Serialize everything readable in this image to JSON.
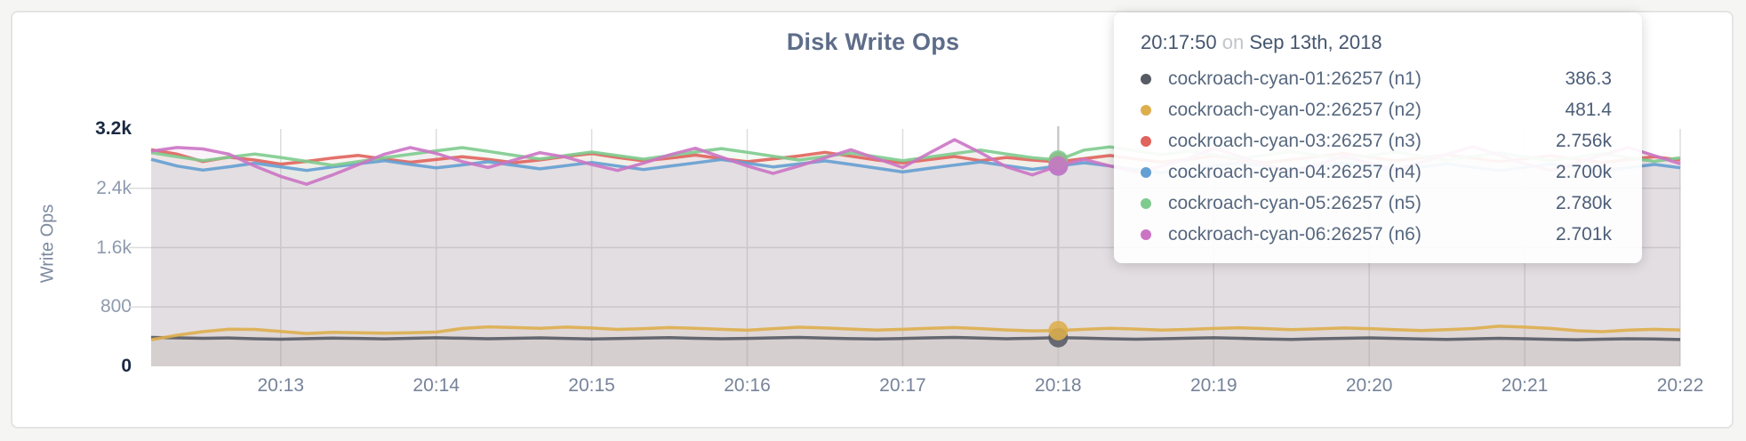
{
  "colors": {
    "page_bg": "#f5f5f3",
    "panel_border": "#e4e4e4",
    "grid": "#dddddd",
    "hover_line": "#c9c9c9",
    "title_text": "#5e6d89",
    "axis_text": "#8e9aae",
    "axis_text_emphasis": "#1b2942"
  },
  "tooltip": {
    "time": "20:17:50",
    "conjunction": "on",
    "date": "Sep 13th, 2018",
    "hover_index": 35,
    "rows": [
      {
        "label": "cockroach-cyan-01:26257 (n1)",
        "value": "386.3"
      },
      {
        "label": "cockroach-cyan-02:26257 (n2)",
        "value": "481.4"
      },
      {
        "label": "cockroach-cyan-03:26257 (n3)",
        "value": "2.756k"
      },
      {
        "label": "cockroach-cyan-04:26257 (n4)",
        "value": "2.700k"
      },
      {
        "label": "cockroach-cyan-05:26257 (n5)",
        "value": "2.780k"
      },
      {
        "label": "cockroach-cyan-06:26257 (n6)",
        "value": "2.701k"
      }
    ]
  },
  "chart_data": {
    "type": "line",
    "title": "Disk Write Ops",
    "ylabel": "Write Ops",
    "xlabel": "",
    "grid": true,
    "legend_position": "tooltip-overlay",
    "ylim": [
      0,
      3600
    ],
    "x_start_time": "20:12:00",
    "x_step_seconds": 10,
    "y_ticks": [
      {
        "label": "3.2k",
        "value": 3200,
        "emphasis": true,
        "gridline": false
      },
      {
        "label": "2.4k",
        "value": 2400,
        "emphasis": false,
        "gridline": true
      },
      {
        "label": "1.6k",
        "value": 1600,
        "emphasis": false,
        "gridline": true
      },
      {
        "label": "800",
        "value": 800,
        "emphasis": false,
        "gridline": true
      },
      {
        "label": "0",
        "value": 0,
        "emphasis": true,
        "gridline": false
      }
    ],
    "x_ticks": [
      {
        "label": "20:13",
        "index": 5
      },
      {
        "label": "20:14",
        "index": 11
      },
      {
        "label": "20:15",
        "index": 17
      },
      {
        "label": "20:16",
        "index": 23
      },
      {
        "label": "20:17",
        "index": 29
      },
      {
        "label": "20:18",
        "index": 35
      },
      {
        "label": "20:19",
        "index": 41
      },
      {
        "label": "20:20",
        "index": 47
      },
      {
        "label": "20:21",
        "index": 53
      },
      {
        "label": "20:22",
        "index": 59
      }
    ],
    "series": [
      {
        "name": "cockroach-cyan-01:26257 (n1)",
        "color": "#565b64",
        "values": [
          390,
          384,
          377,
          382,
          371,
          366,
          373,
          380,
          376,
          370,
          378,
          385,
          379,
          372,
          377,
          383,
          376,
          369,
          374,
          381,
          386,
          378,
          371,
          376,
          384,
          390,
          381,
          373,
          368,
          375,
          383,
          389,
          380,
          372,
          378,
          386.3,
          380,
          372,
          365,
          371,
          379,
          385,
          377,
          369,
          363,
          371,
          378,
          384,
          376,
          368,
          362,
          370,
          377,
          371,
          364,
          358,
          365,
          372,
          368,
          361
        ]
      },
      {
        "name": "cockroach-cyan-02:26257 (n2)",
        "color": "#ddae4c",
        "values": [
          358,
          420,
          468,
          500,
          497,
          470,
          442,
          458,
          452,
          447,
          452,
          462,
          510,
          532,
          522,
          513,
          528,
          516,
          497,
          508,
          522,
          512,
          498,
          486,
          508,
          527,
          516,
          502,
          489,
          498,
          512,
          523,
          508,
          490,
          478,
          481.4,
          498,
          512,
          502,
          488,
          497,
          510,
          520,
          508,
          494,
          505,
          517,
          508,
          494,
          483,
          495,
          509,
          541,
          528,
          510,
          480,
          468,
          488,
          498,
          490
        ]
      },
      {
        "name": "cockroach-cyan-03:26257 (n3)",
        "color": "#e0635c",
        "values": [
          2920,
          2860,
          2760,
          2820,
          2780,
          2725,
          2762,
          2808,
          2843,
          2795,
          2750,
          2788,
          2826,
          2790,
          2745,
          2782,
          2830,
          2868,
          2815,
          2770,
          2806,
          2848,
          2800,
          2758,
          2795,
          2836,
          2885,
          2832,
          2780,
          2742,
          2786,
          2828,
          2772,
          2815,
          2780,
          2756,
          2800,
          2842,
          2795,
          2752,
          2790,
          2835,
          2788,
          2745,
          2786,
          2828,
          2870,
          2818,
          2772,
          2810,
          2852,
          2806,
          2760,
          2798,
          2840,
          2792,
          2748,
          2786,
          2825,
          2780
        ]
      },
      {
        "name": "cockroach-cyan-04:26257 (n4)",
        "color": "#649fd2",
        "values": [
          2790,
          2700,
          2645,
          2690,
          2738,
          2690,
          2640,
          2688,
          2730,
          2772,
          2722,
          2675,
          2715,
          2758,
          2710,
          2662,
          2705,
          2748,
          2700,
          2652,
          2698,
          2742,
          2788,
          2738,
          2688,
          2728,
          2770,
          2722,
          2672,
          2620,
          2668,
          2712,
          2755,
          2705,
          2655,
          2700,
          2745,
          2700,
          2652,
          2608,
          2655,
          2700,
          2742,
          2695,
          2648,
          2692,
          2736,
          2690,
          2642,
          2686,
          2730,
          2684,
          2638,
          2682,
          2726,
          2680,
          2634,
          2678,
          2722,
          2676
        ]
      },
      {
        "name": "cockroach-cyan-05:26257 (n5)",
        "color": "#7ecb8e",
        "values": [
          2880,
          2825,
          2772,
          2818,
          2862,
          2815,
          2762,
          2710,
          2760,
          2812,
          2858,
          2905,
          2948,
          2898,
          2845,
          2795,
          2842,
          2888,
          2840,
          2792,
          2840,
          2888,
          2935,
          2885,
          2832,
          2780,
          2828,
          2876,
          2825,
          2772,
          2820,
          2868,
          2915,
          2862,
          2812,
          2780,
          2915,
          2958,
          2905,
          2852,
          2900,
          2852,
          2800,
          2848,
          2895,
          2845,
          2792,
          2840,
          2888,
          2836,
          2782,
          2830,
          2878,
          2825,
          2772,
          2820,
          2868,
          2815,
          2762,
          2810
        ]
      },
      {
        "name": "cockroach-cyan-06:26257 (n6)",
        "color": "#cb74c4",
        "values": [
          2900,
          2950,
          2930,
          2860,
          2700,
          2560,
          2455,
          2580,
          2720,
          2860,
          2950,
          2870,
          2760,
          2680,
          2780,
          2880,
          2820,
          2720,
          2640,
          2740,
          2850,
          2940,
          2820,
          2700,
          2600,
          2700,
          2810,
          2920,
          2800,
          2680,
          2870,
          3055,
          2880,
          2690,
          2580,
          2701,
          2790,
          2700,
          2620,
          2700,
          2800,
          2940,
          2830,
          2710,
          2620,
          2720,
          2830,
          2740,
          2650,
          2750,
          2860,
          2960,
          2850,
          2730,
          2640,
          2740,
          2850,
          2950,
          2840,
          2730
        ]
      }
    ]
  }
}
